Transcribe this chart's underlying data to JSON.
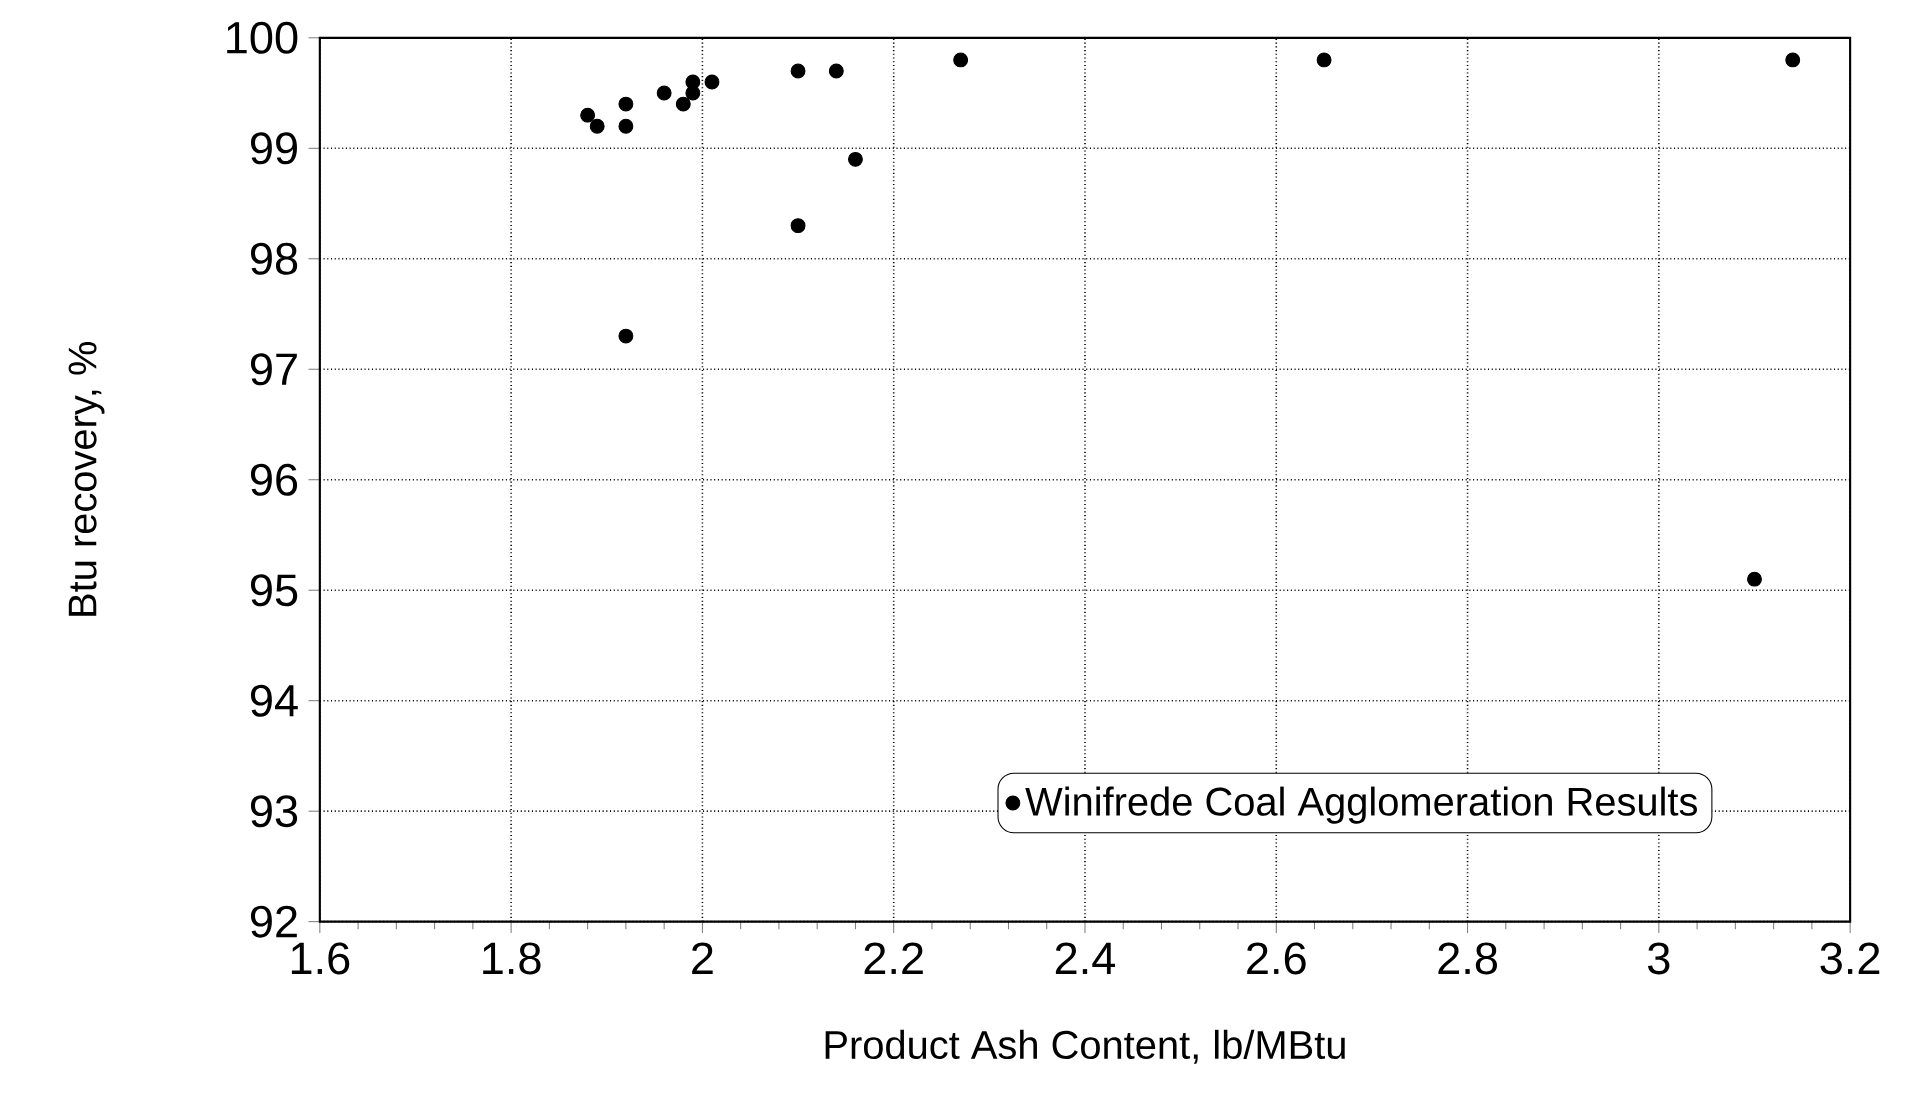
{
  "chart_data": {
    "type": "scatter",
    "xlabel": "Product Ash Content, lb/MBtu",
    "ylabel": "Btu recovery, %",
    "series": [
      {
        "name": "Winifrede Coal Agglomeration Results",
        "color": "#000000",
        "x": [
          1.88,
          1.89,
          1.92,
          1.92,
          1.96,
          1.98,
          1.99,
          1.99,
          2.01,
          2.1,
          2.14,
          2.27,
          2.16,
          2.1,
          1.92,
          2.65,
          3.14,
          3.1
        ],
        "values": [
          99.3,
          99.2,
          99.4,
          99.2,
          99.5,
          99.4,
          99.5,
          99.6,
          99.6,
          99.7,
          99.7,
          99.8,
          98.9,
          98.3,
          97.3,
          99.8,
          99.8,
          95.1
        ]
      }
    ],
    "xlim": [
      1.6,
      3.2
    ],
    "xticks": [
      1.6,
      1.8,
      2,
      2.2,
      2.4,
      2.6,
      2.8,
      3,
      3.2
    ],
    "ylim": [
      92,
      100
    ],
    "yticks": [
      92,
      93,
      94,
      95,
      96,
      97,
      98,
      99,
      100
    ],
    "grid": true,
    "legend": "bottom right",
    "marker": "circle"
  }
}
